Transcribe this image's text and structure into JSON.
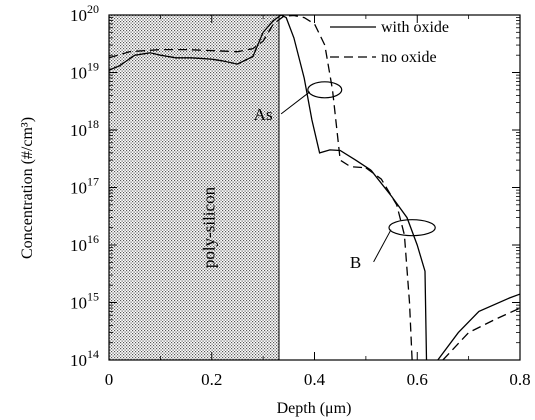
{
  "chart_data": {
    "type": "line",
    "title": "",
    "xlabel": "Depth (μm)",
    "ylabel": "Concentration (#/cm³)",
    "xlim": [
      0,
      0.8
    ],
    "ylim": [
      100000000000000.0,
      1e+20
    ],
    "y_scale": "log",
    "x_ticks": [
      {
        "value": 0,
        "label": "0"
      },
      {
        "value": 0.2,
        "label": "0.2"
      },
      {
        "value": 0.4,
        "label": "0.4"
      },
      {
        "value": 0.6,
        "label": "0.6"
      },
      {
        "value": 0.8,
        "label": "0.8"
      }
    ],
    "y_ticks": [
      {
        "exp": 14,
        "base": "10",
        "sup": "14"
      },
      {
        "exp": 15,
        "base": "10",
        "sup": "15"
      },
      {
        "exp": 16,
        "base": "10",
        "sup": "16"
      },
      {
        "exp": 17,
        "base": "10",
        "sup": "17"
      },
      {
        "exp": 18,
        "base": "10",
        "sup": "18"
      },
      {
        "exp": 19,
        "base": "10",
        "sup": "19"
      },
      {
        "exp": 20,
        "base": "10",
        "sup": "20"
      }
    ],
    "grid": false,
    "legend_position": "top-right",
    "series": [
      {
        "name": "with oxide",
        "style": "solid",
        "segments": [
          {
            "label": "As",
            "points": [
              [
                0.0,
                1.1e+19
              ],
              [
                0.02,
                1.3e+19
              ],
              [
                0.05,
                2e+19
              ],
              [
                0.08,
                2.2e+19
              ],
              [
                0.1,
                2e+19
              ],
              [
                0.13,
                1.8e+19
              ],
              [
                0.16,
                1.8e+19
              ],
              [
                0.2,
                1.7e+19
              ],
              [
                0.22,
                1.6e+19
              ],
              [
                0.25,
                1.4e+19
              ],
              [
                0.28,
                1.9e+19
              ],
              [
                0.3,
                5e+19
              ],
              [
                0.32,
                8e+19
              ],
              [
                0.335,
                1e+20
              ],
              [
                0.345,
                9e+19
              ],
              [
                0.36,
                4e+19
              ],
              [
                0.38,
                8e+18
              ],
              [
                0.395,
                1.5e+18
              ],
              [
                0.41,
                4e+17
              ],
              [
                0.43,
                4.5e+17
              ],
              [
                0.45,
                4.4e+17
              ],
              [
                0.48,
                3e+17
              ],
              [
                0.51,
                2e+17
              ]
            ]
          },
          {
            "label": "B",
            "points": [
              [
                0.51,
                2e+17
              ],
              [
                0.55,
                7e+16
              ],
              [
                0.58,
                3e+16
              ],
              [
                0.6,
                1e+16
              ],
              [
                0.615,
                3500000000000000.0
              ],
              [
                0.618,
                100000000000000.0
              ]
            ]
          },
          {
            "label": "B",
            "points": [
              [
                0.64,
                100000000000000.0
              ],
              [
                0.68,
                300000000000000.0
              ],
              [
                0.72,
                700000000000000.0
              ],
              [
                0.78,
                1200000000000000.0
              ],
              [
                0.8,
                1400000000000000.0
              ]
            ]
          }
        ]
      },
      {
        "name": "no oxide",
        "style": "dashed",
        "segments": [
          {
            "label": "As",
            "points": [
              [
                0.0,
                1.8e+19
              ],
              [
                0.04,
                2.3e+19
              ],
              [
                0.1,
                2.5e+19
              ],
              [
                0.15,
                2.5e+19
              ],
              [
                0.2,
                2.4e+19
              ],
              [
                0.25,
                2.3e+19
              ],
              [
                0.28,
                2.6e+19
              ],
              [
                0.3,
                3.5e+19
              ],
              [
                0.32,
                7e+19
              ],
              [
                0.34,
                9.5e+19
              ],
              [
                0.36,
                9.8e+19
              ],
              [
                0.38,
                9e+19
              ],
              [
                0.4,
                7e+19
              ],
              [
                0.42,
                3e+19
              ],
              [
                0.435,
                5e+18
              ],
              [
                0.45,
                3e+17
              ],
              [
                0.47,
                2.3e+17
              ],
              [
                0.5,
                2.2e+17
              ]
            ]
          },
          {
            "label": "B",
            "points": [
              [
                0.5,
                2.2e+17
              ],
              [
                0.53,
                1.4e+17
              ],
              [
                0.56,
                5e+16
              ],
              [
                0.575,
                1.5e+16
              ],
              [
                0.585,
                1000000000000000.0
              ],
              [
                0.59,
                100000000000000.0
              ]
            ]
          },
          {
            "label": "B",
            "points": [
              [
                0.65,
                100000000000000.0
              ],
              [
                0.7,
                300000000000000.0
              ],
              [
                0.75,
                500000000000000.0
              ],
              [
                0.8,
                800000000000000.0
              ]
            ]
          }
        ]
      }
    ],
    "shaded_region": {
      "x_range": [
        0,
        0.33
      ],
      "label": "poly-silicon"
    },
    "annotations": [
      {
        "text": "As",
        "ellipse_center": [
          0.42,
          5e+18
        ],
        "ellipse_rx_um": 0.033,
        "label_at": [
          0.3,
          1.5e+18
        ]
      },
      {
        "text": "B",
        "ellipse_center": [
          0.59,
          2e+16
        ],
        "ellipse_rx_um": 0.045,
        "label_at": [
          0.48,
          4000000000000000.0
        ]
      }
    ]
  }
}
